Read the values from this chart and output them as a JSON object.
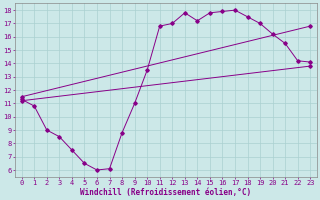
{
  "xlabel": "Windchill (Refroidissement éolien,°C)",
  "xlim": [
    -0.5,
    23.5
  ],
  "ylim": [
    5.5,
    18.5
  ],
  "xticks": [
    0,
    1,
    2,
    3,
    4,
    5,
    6,
    7,
    8,
    9,
    10,
    11,
    12,
    13,
    14,
    15,
    16,
    17,
    18,
    19,
    20,
    21,
    22,
    23
  ],
  "yticks": [
    6,
    7,
    8,
    9,
    10,
    11,
    12,
    13,
    14,
    15,
    16,
    17,
    18
  ],
  "bg_color": "#cce8e8",
  "grid_color": "#aad0d0",
  "line_color": "#880088",
  "line1_x": [
    0,
    1,
    2,
    3,
    4,
    5,
    6,
    7,
    8,
    9,
    10,
    11,
    12,
    13,
    14,
    15,
    16,
    17,
    18,
    19,
    20,
    21,
    22,
    23
  ],
  "line1_y": [
    11.3,
    10.8,
    9.0,
    8.5,
    7.5,
    6.5,
    6.0,
    6.1,
    8.8,
    11.0,
    13.5,
    16.8,
    17.0,
    17.8,
    17.2,
    17.8,
    17.9,
    18.0,
    17.5,
    17.0,
    16.2,
    15.5,
    14.2,
    14.1
  ],
  "line2_x": [
    0,
    23
  ],
  "line2_y": [
    11.2,
    13.8
  ],
  "line3_x": [
    0,
    23
  ],
  "line3_y": [
    11.5,
    16.8
  ],
  "font_size_tick": 5,
  "font_size_label": 5.5,
  "marker_size": 1.8,
  "line_width": 0.7
}
